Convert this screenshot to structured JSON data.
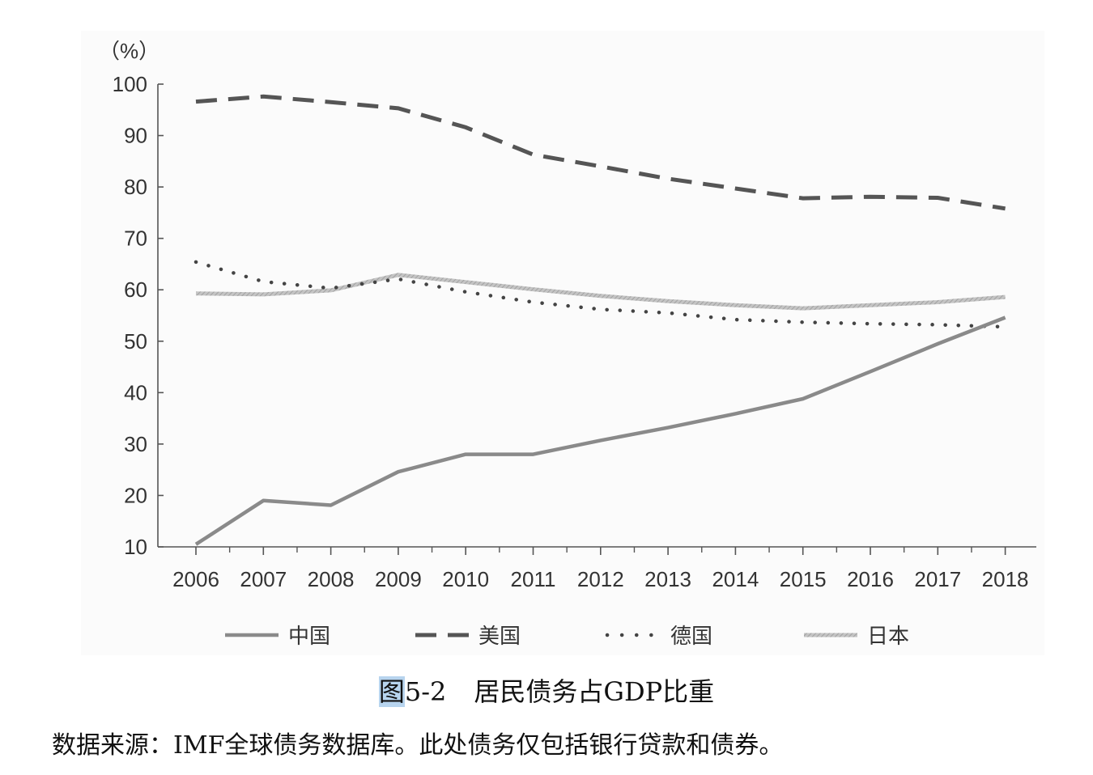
{
  "chart_data": {
    "type": "line",
    "unit_label": "（%）",
    "x": [
      "2006",
      "2007",
      "2008",
      "2009",
      "2010",
      "2011",
      "2012",
      "2013",
      "2014",
      "2015",
      "2016",
      "2017",
      "2018"
    ],
    "y_ticks": [
      "100",
      "90",
      "80",
      "70",
      "60",
      "50",
      "40",
      "30",
      "20",
      "10"
    ],
    "ylim": [
      10,
      100
    ],
    "series": [
      {
        "name": "中国",
        "style": "solid",
        "color": "#8a8a8a",
        "values": [
          10.5,
          19,
          18.1,
          24.6,
          28,
          28,
          30.7,
          33.2,
          35.9,
          38.8,
          44.1,
          49.5,
          54.6
        ]
      },
      {
        "name": "美国",
        "style": "dashed",
        "color": "#555555",
        "values": [
          96.6,
          97.6,
          96.5,
          95.3,
          91.6,
          86.3,
          84.0,
          81.6,
          79.7,
          77.8,
          78.1,
          77.9,
          75.8
        ]
      },
      {
        "name": "德国",
        "style": "dotted",
        "color": "#444444",
        "values": [
          65.4,
          61.6,
          60.3,
          62.1,
          59.6,
          57.6,
          56.2,
          55.5,
          54.2,
          53.7,
          53.4,
          53.2,
          52.8
        ]
      },
      {
        "name": "日本",
        "style": "hatched",
        "color": "#b3b3b3",
        "values": [
          59.3,
          59.1,
          59.9,
          62.9,
          61.5,
          60.1,
          58.8,
          57.8,
          57.0,
          56.4,
          57.0,
          57.6,
          58.6
        ]
      }
    ]
  },
  "caption": {
    "fig_prefix": "图",
    "fig_number": "5-2",
    "fig_title": "居民债务占GDP比重"
  },
  "source_note": "数据来源：IMF全球债务数据库。此处债务仅包括银行贷款和债券。"
}
